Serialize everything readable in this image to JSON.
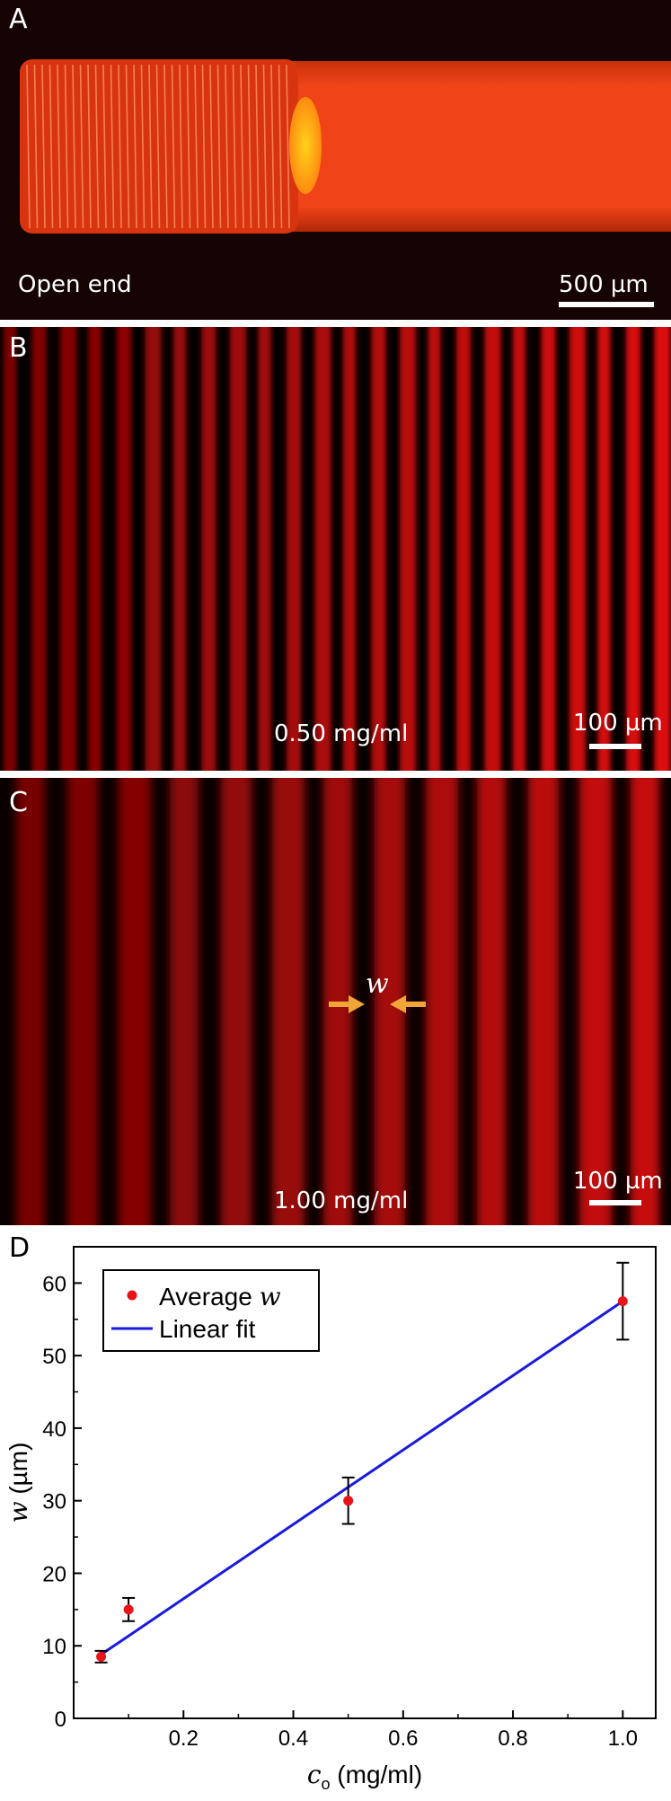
{
  "panels": {
    "a": {
      "letter": "A",
      "caption": "Open end",
      "scale_bar": "500 µm"
    },
    "b": {
      "letter": "B",
      "caption": "0.50 mg/ml",
      "scale_bar": "100 µm"
    },
    "c": {
      "letter": "C",
      "caption": "1.00 mg/ml",
      "scale_bar": "100 µm",
      "marker": "w"
    },
    "d": {
      "letter": "D"
    }
  },
  "colors": {
    "data": "#e8141a",
    "fit": "#1a1adb",
    "arrow": "#f0a636",
    "glow": "#e82a08"
  },
  "chart_data": {
    "type": "scatter",
    "xlabel_main": "c",
    "xlabel_sub": "o",
    "xlabel_unit": " (mg/ml)",
    "ylabel_main": "w",
    "ylabel_unit": " (µm)",
    "xlim": [
      0,
      1.06
    ],
    "ylim": [
      0,
      65
    ],
    "x_ticks": [
      0.2,
      0.4,
      0.6,
      0.8,
      1.0
    ],
    "x_tick_labels": [
      "0.2",
      "0.4",
      "0.6",
      "0.8",
      "1.0"
    ],
    "y_ticks": [
      0,
      10,
      20,
      30,
      40,
      50,
      60
    ],
    "y_tick_labels": [
      "0",
      "10",
      "20",
      "30",
      "40",
      "50",
      "60"
    ],
    "legend_position": "top-left",
    "series": [
      {
        "name": "Average w",
        "legend_label": "Average ",
        "legend_italic": "w",
        "kind": "points",
        "x": [
          0.05,
          0.1,
          0.5,
          1.0
        ],
        "y": [
          8.5,
          15.0,
          30.0,
          57.5
        ],
        "err": [
          0.8,
          1.6,
          3.2,
          5.3
        ]
      },
      {
        "name": "Linear fit",
        "legend_label": "Linear fit",
        "kind": "line",
        "x": [
          0.05,
          1.0
        ],
        "y": [
          8.8,
          57.5
        ]
      }
    ]
  }
}
